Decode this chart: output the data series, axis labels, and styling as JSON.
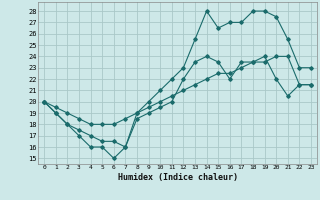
{
  "xlabel": "Humidex (Indice chaleur)",
  "background_color": "#cde8e8",
  "grid_color": "#aac8c8",
  "line_color": "#1a6b6b",
  "x_ticks": [
    0,
    1,
    2,
    3,
    4,
    5,
    6,
    7,
    8,
    9,
    10,
    11,
    12,
    13,
    14,
    15,
    16,
    17,
    18,
    19,
    20,
    21,
    22,
    23
  ],
  "y_ticks": [
    15,
    16,
    17,
    18,
    19,
    20,
    21,
    22,
    23,
    24,
    25,
    26,
    27,
    28
  ],
  "xlim": [
    -0.5,
    23.5
  ],
  "ylim": [
    14.5,
    28.8
  ],
  "line1": {
    "x": [
      0,
      1,
      2,
      3,
      4,
      5,
      6,
      7,
      8,
      9,
      10,
      11,
      12,
      13,
      14,
      15,
      16,
      17,
      18,
      19,
      20,
      21,
      22,
      23
    ],
    "y": [
      20,
      19,
      18,
      17,
      16,
      16,
      15,
      16,
      18.5,
      19,
      19.5,
      20,
      22,
      23.5,
      24,
      23.5,
      22,
      23.5,
      23.5,
      24,
      22,
      20.5,
      21.5,
      21.5
    ]
  },
  "line2": {
    "x": [
      0,
      1,
      2,
      3,
      4,
      5,
      6,
      7,
      8,
      9,
      10,
      11,
      12,
      13,
      14,
      15,
      16,
      17,
      18,
      19,
      20,
      21,
      22,
      23
    ],
    "y": [
      20,
      19,
      18,
      17.5,
      17,
      16.5,
      16.5,
      16,
      19,
      20,
      21,
      22,
      23,
      25.5,
      28,
      26.5,
      27,
      27,
      28,
      28,
      27.5,
      25.5,
      23,
      23
    ]
  },
  "line3": {
    "x": [
      0,
      1,
      2,
      3,
      4,
      5,
      6,
      7,
      8,
      9,
      10,
      11,
      12,
      13,
      14,
      15,
      16,
      17,
      18,
      19,
      20,
      21,
      22,
      23
    ],
    "y": [
      20,
      19.5,
      19,
      18.5,
      18,
      18,
      18,
      18.5,
      19,
      19.5,
      20,
      20.5,
      21,
      21.5,
      22,
      22.5,
      22.5,
      23,
      23.5,
      23.5,
      24,
      24,
      21.5,
      21.5
    ]
  }
}
